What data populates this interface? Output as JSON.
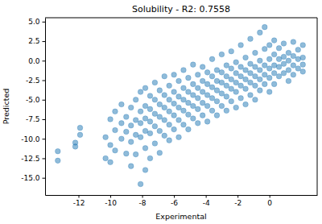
{
  "chart_data": {
    "type": "scatter",
    "title": "Solubility - R2: 0.7558",
    "xlabel": "Experimental",
    "ylabel": "Predicted",
    "color": "#1f77b4",
    "marker": "circle",
    "grid": false,
    "xlim": [
      -14.1,
      3.0
    ],
    "ylim": [
      -17.2,
      5.5
    ],
    "xticks": [
      -12,
      -10,
      -8,
      -6,
      -4,
      -2,
      0
    ],
    "yticks": [
      {
        "value": 5.0,
        "label": "5.0"
      },
      {
        "value": 2.5,
        "label": "2.5"
      },
      {
        "value": 0.0,
        "label": "0.0"
      },
      {
        "value": -2.5,
        "label": "-2.5"
      },
      {
        "value": -5.0,
        "label": "-5.0"
      },
      {
        "value": -7.5,
        "label": "-7.5"
      },
      {
        "value": -10.0,
        "label": "-10.0"
      },
      {
        "value": -12.5,
        "label": "-12.5"
      },
      {
        "value": -15.0,
        "label": "-15.0"
      }
    ],
    "x": [
      -13.3,
      -13.3,
      -12.2,
      -12.2,
      -11.9,
      -11.9,
      -10.3,
      -10.3,
      -10.0,
      -10.0,
      -10.0,
      -9.7,
      -9.7,
      -9.7,
      -9.3,
      -9.3,
      -9.3,
      -9.0,
      -9.0,
      -9.0,
      -8.7,
      -8.7,
      -8.7,
      -8.7,
      -8.4,
      -8.4,
      -8.4,
      -8.4,
      -8.1,
      -8.1,
      -8.1,
      -8.1,
      -8.1,
      -7.8,
      -7.8,
      -7.8,
      -7.8,
      -7.8,
      -7.8,
      -7.5,
      -7.5,
      -7.5,
      -7.5,
      -7.5,
      -7.2,
      -7.2,
      -7.2,
      -7.2,
      -7.2,
      -6.9,
      -6.9,
      -6.9,
      -6.9,
      -6.9,
      -6.6,
      -6.6,
      -6.6,
      -6.6,
      -6.6,
      -6.3,
      -6.3,
      -6.3,
      -6.3,
      -6.3,
      -6.0,
      -6.0,
      -6.0,
      -6.0,
      -6.0,
      -5.7,
      -5.7,
      -5.7,
      -5.7,
      -5.7,
      -5.4,
      -5.4,
      -5.4,
      -5.4,
      -5.4,
      -5.1,
      -5.1,
      -5.1,
      -5.1,
      -5.1,
      -4.8,
      -4.8,
      -4.8,
      -4.8,
      -4.8,
      -4.5,
      -4.5,
      -4.5,
      -4.5,
      -4.5,
      -4.2,
      -4.2,
      -4.2,
      -4.2,
      -4.2,
      -3.9,
      -3.9,
      -3.9,
      -3.9,
      -3.9,
      -3.6,
      -3.6,
      -3.6,
      -3.6,
      -3.6,
      -3.3,
      -3.3,
      -3.3,
      -3.3,
      -3.3,
      -3.0,
      -3.0,
      -3.0,
      -3.0,
      -3.0,
      -2.7,
      -2.7,
      -2.7,
      -2.7,
      -2.7,
      -2.4,
      -2.4,
      -2.4,
      -2.4,
      -2.4,
      -2.1,
      -2.1,
      -2.1,
      -2.1,
      -2.1,
      -1.8,
      -1.8,
      -1.8,
      -1.8,
      -1.8,
      -1.5,
      -1.5,
      -1.5,
      -1.5,
      -1.5,
      -1.2,
      -1.2,
      -1.2,
      -1.2,
      -1.2,
      -0.9,
      -0.9,
      -0.9,
      -0.9,
      -0.9,
      -0.6,
      -0.6,
      -0.6,
      -0.6,
      -0.6,
      -0.3,
      -0.3,
      -0.3,
      -0.3,
      -0.3,
      0.0,
      0.0,
      0.0,
      0.0,
      0.0,
      0.3,
      0.3,
      0.3,
      0.3,
      0.3,
      0.6,
      0.6,
      0.6,
      0.6,
      0.9,
      0.9,
      0.9,
      0.9,
      1.2,
      1.2,
      1.2,
      1.2,
      1.5,
      1.5,
      1.5,
      1.5,
      1.8,
      1.8,
      1.8,
      2.1,
      2.1,
      2.1,
      2.1
    ],
    "y": [
      -11.6,
      -12.8,
      -10.5,
      -11.0,
      -9.5,
      -8.6,
      -9.8,
      -12.5,
      -7.5,
      -10.8,
      -13.0,
      -6.5,
      -8.9,
      -11.5,
      -8.0,
      -10.0,
      -5.6,
      -7.2,
      -9.1,
      -11.9,
      -6.0,
      -8.3,
      -10.4,
      -13.5,
      -5.0,
      -7.6,
      -9.5,
      -12.0,
      -4.0,
      -6.5,
      -8.0,
      -9.8,
      -15.8,
      -3.5,
      -5.8,
      -7.4,
      -9.0,
      -11.2,
      -14.0,
      -4.5,
      -6.2,
      -7.8,
      -9.3,
      -12.5,
      -2.8,
      -5.0,
      -6.8,
      -8.4,
      -10.6,
      -3.8,
      -5.6,
      -7.2,
      -9.0,
      -11.8,
      -2.0,
      -4.4,
      -6.0,
      -7.6,
      -9.6,
      -3.2,
      -5.0,
      -6.5,
      -8.2,
      -10.2,
      -1.8,
      -4.0,
      -5.5,
      -7.0,
      -8.8,
      -2.6,
      -4.6,
      -6.0,
      -7.6,
      -9.8,
      -1.2,
      -3.5,
      -5.0,
      -6.4,
      -8.2,
      -2.2,
      -4.0,
      -5.4,
      -6.9,
      -8.8,
      -0.5,
      -3.0,
      -4.4,
      -5.8,
      -7.4,
      -1.8,
      -3.5,
      -4.8,
      -6.2,
      -8.0,
      -0.8,
      -2.6,
      -4.0,
      -5.4,
      -7.0,
      -1.5,
      -3.0,
      -4.4,
      -5.8,
      -7.8,
      0.2,
      -2.0,
      -3.4,
      -4.8,
      -6.4,
      -1.2,
      -2.6,
      -3.8,
      -5.2,
      -7.0,
      0.8,
      -1.5,
      -2.8,
      -4.2,
      -5.8,
      -0.6,
      -2.0,
      -3.2,
      -4.6,
      -6.4,
      1.2,
      -1.0,
      -2.4,
      -3.6,
      -5.2,
      -0.2,
      -1.6,
      -2.8,
      -4.0,
      -6.0,
      2.0,
      -0.8,
      -2.0,
      -3.2,
      -4.8,
      0.4,
      -1.2,
      -2.4,
      -3.6,
      -5.6,
      2.8,
      -0.4,
      -1.6,
      -2.8,
      -4.4,
      1.0,
      -0.8,
      -2.0,
      -3.2,
      -5.0,
      3.6,
      0.0,
      -1.2,
      -2.4,
      -3.8,
      4.3,
      1.5,
      -0.6,
      -1.8,
      -3.0,
      2.0,
      0.2,
      -1.0,
      -2.2,
      -4.0,
      2.6,
      0.8,
      -0.6,
      -1.6,
      -3.0,
      1.6,
      0.2,
      -0.8,
      -2.0,
      2.2,
      0.5,
      -0.4,
      -1.6,
      1.0,
      0.0,
      -1.2,
      -2.6,
      2.4,
      0.6,
      -0.6,
      -1.8,
      1.4,
      0.2,
      -1.0,
      2.0,
      0.4,
      -0.5,
      -1.4
    ]
  }
}
